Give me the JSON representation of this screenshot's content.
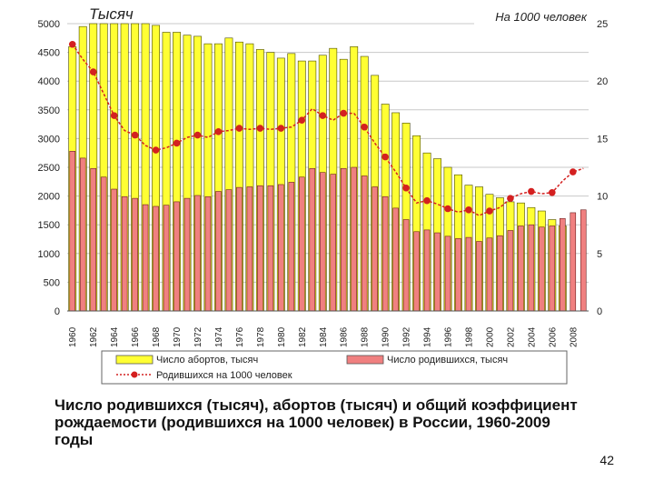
{
  "chart_data": {
    "type": "bar",
    "title": "",
    "left_axis_label": "Тысяч",
    "right_axis_label": "На 1000 человек",
    "ylim_left": [
      0,
      5000
    ],
    "ylim_right": [
      0,
      25
    ],
    "left_ticks": [
      "0",
      "500",
      "1000",
      "1500",
      "2000",
      "2500",
      "3000",
      "3500",
      "4000",
      "4500",
      "5000"
    ],
    "right_ticks": [
      "0",
      "5",
      "10",
      "15",
      "20",
      "25"
    ],
    "x_tick_labels": [
      "1960",
      "1962",
      "1964",
      "1966",
      "1968",
      "1970",
      "1972",
      "1974",
      "1976",
      "1978",
      "1980",
      "1982",
      "1984",
      "1986",
      "1988",
      "1990",
      "1992",
      "1994",
      "1996",
      "1998",
      "2000",
      "2002",
      "2004",
      "2006",
      "2008"
    ],
    "categories": [
      "1960",
      "1961",
      "1962",
      "1963",
      "1964",
      "1965",
      "1966",
      "1967",
      "1968",
      "1969",
      "1970",
      "1971",
      "1972",
      "1973",
      "1974",
      "1975",
      "1976",
      "1977",
      "1978",
      "1979",
      "1980",
      "1981",
      "1982",
      "1983",
      "1984",
      "1985",
      "1986",
      "1987",
      "1988",
      "1989",
      "1990",
      "1991",
      "1992",
      "1993",
      "1994",
      "1995",
      "1996",
      "1997",
      "1998",
      "1999",
      "2000",
      "2001",
      "2002",
      "2003",
      "2004",
      "2005",
      "2006",
      "2007",
      "2008",
      "2009"
    ],
    "series": [
      {
        "name": "Число абортов, тысяч",
        "kind": "bar",
        "axis": "left",
        "color": "#ffff33",
        "values": [
          4600,
          4950,
          5000,
          5000,
          5000,
          5000,
          5000,
          5000,
          4970,
          4850,
          4850,
          4800,
          4780,
          4650,
          4650,
          4750,
          4680,
          4650,
          4550,
          4500,
          4400,
          4480,
          4350,
          4350,
          4450,
          4570,
          4380,
          4600,
          4430,
          4100,
          3600,
          3450,
          3270,
          3050,
          2750,
          2650,
          2500,
          2370,
          2190,
          2160,
          2030,
          1970,
          1900,
          1880,
          1800,
          1740,
          1590,
          1480,
          null,
          null
        ]
      },
      {
        "name": "Число родившихся, тысяч",
        "kind": "bar",
        "axis": "left",
        "color": "#f08080",
        "values": [
          2780,
          2660,
          2480,
          2330,
          2120,
          1990,
          1960,
          1850,
          1820,
          1840,
          1900,
          1960,
          2010,
          1990,
          2080,
          2110,
          2150,
          2160,
          2180,
          2180,
          2200,
          2240,
          2330,
          2480,
          2410,
          2380,
          2480,
          2500,
          2350,
          2160,
          1990,
          1790,
          1590,
          1380,
          1410,
          1360,
          1300,
          1260,
          1280,
          1210,
          1270,
          1310,
          1400,
          1480,
          1500,
          1460,
          1480,
          1610,
          1710,
          1760
        ]
      },
      {
        "name": "Родившихся на 1000 человек",
        "kind": "line",
        "axis": "right",
        "color": "#d42020",
        "values": [
          23.2,
          21.9,
          20.8,
          18.9,
          17.0,
          15.7,
          15.3,
          14.4,
          14.0,
          14.2,
          14.6,
          15.1,
          15.3,
          15.1,
          15.6,
          15.7,
          15.9,
          15.8,
          15.9,
          15.8,
          15.9,
          16.0,
          16.6,
          17.6,
          17.0,
          16.6,
          17.2,
          17.2,
          16.0,
          14.6,
          13.4,
          12.1,
          10.7,
          9.4,
          9.6,
          9.3,
          8.9,
          8.6,
          8.8,
          8.3,
          8.7,
          9.0,
          9.8,
          10.2,
          10.4,
          10.2,
          10.3,
          11.3,
          12.1,
          12.4
        ]
      }
    ],
    "legend": {
      "position": "bottom",
      "items": [
        "Число абортов, тысяч",
        "Число родившихся, тысяч",
        "Родившихся на 1000 человек"
      ]
    }
  },
  "caption": {
    "line1": "Число родившихся (тысяч), абортов (тысяч) и общий коэффициент",
    "line2": "рождаемости (родившихся на 1000 человек) в России, 1960-2009",
    "line3": "годы"
  },
  "page_number": "42"
}
